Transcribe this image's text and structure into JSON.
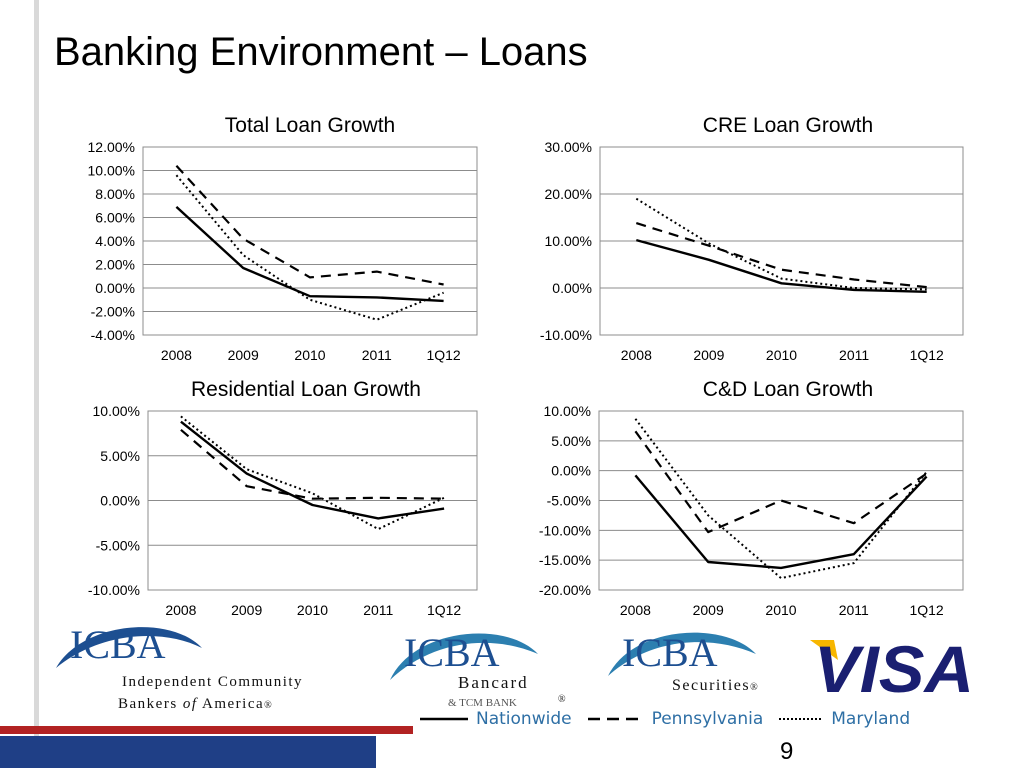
{
  "slide": {
    "title": "Banking Environment – Loans",
    "page_number": "9"
  },
  "chart_data": [
    {
      "type": "line",
      "title": "Total Loan Growth",
      "categories": [
        "2008",
        "2009",
        "2010",
        "2011",
        "1Q12"
      ],
      "ylim": [
        -4,
        12
      ],
      "yticks": [
        "12.00%",
        "10.00%",
        "8.00%",
        "6.00%",
        "4.00%",
        "2.00%",
        "0.00%",
        "-2.00%",
        "-4.00%"
      ],
      "ytick_values": [
        12,
        10,
        8,
        6,
        4,
        2,
        0,
        -2,
        -4
      ],
      "grid": true,
      "series": [
        {
          "name": "Nationwide",
          "values": [
            6.9,
            1.7,
            -0.7,
            -0.8,
            -1.1
          ]
        },
        {
          "name": "Pennsylvania",
          "values": [
            10.4,
            4.2,
            0.9,
            1.4,
            0.3
          ]
        },
        {
          "name": "Maryland",
          "values": [
            9.6,
            2.8,
            -1.0,
            -2.7,
            -0.4
          ]
        }
      ]
    },
    {
      "type": "line",
      "title": "CRE Loan Growth",
      "categories": [
        "2008",
        "2009",
        "2010",
        "2011",
        "1Q12"
      ],
      "ylim": [
        -10,
        30
      ],
      "yticks": [
        "30.00%",
        "20.00%",
        "10.00%",
        "0.00%",
        "-10.00%"
      ],
      "ytick_values": [
        30,
        20,
        10,
        0,
        -10
      ],
      "grid": true,
      "series": [
        {
          "name": "Nationwide",
          "values": [
            10.2,
            6.0,
            1.0,
            -0.4,
            -0.8
          ]
        },
        {
          "name": "Pennsylvania",
          "values": [
            13.8,
            9.0,
            3.9,
            1.8,
            0.2
          ]
        },
        {
          "name": "Maryland",
          "values": [
            19.0,
            9.5,
            2.0,
            0.0,
            -0.3
          ]
        }
      ]
    },
    {
      "type": "line",
      "title": "Residential Loan Growth",
      "categories": [
        "2008",
        "2009",
        "2010",
        "2011",
        "1Q12"
      ],
      "ylim": [
        -10,
        10
      ],
      "yticks": [
        "10.00%",
        "5.00%",
        "0.00%",
        "-5.00%",
        "-10.00%"
      ],
      "ytick_values": [
        10,
        5,
        0,
        -5,
        -10
      ],
      "grid": true,
      "series": [
        {
          "name": "Nationwide",
          "values": [
            8.8,
            3.0,
            -0.5,
            -2.0,
            -0.9
          ]
        },
        {
          "name": "Pennsylvania",
          "values": [
            7.9,
            1.6,
            0.2,
            0.3,
            0.2
          ]
        },
        {
          "name": "Maryland",
          "values": [
            9.4,
            3.5,
            0.8,
            -3.2,
            0.3
          ]
        }
      ]
    },
    {
      "type": "line",
      "title": "C&D Loan Growth",
      "categories": [
        "2008",
        "2009",
        "2010",
        "2011",
        "1Q12"
      ],
      "ylim": [
        -20,
        10
      ],
      "yticks": [
        "10.00%",
        "5.00%",
        "0.00%",
        "-5.00%",
        "-10.00%",
        "-15.00%",
        "-20.00%"
      ],
      "ytick_values": [
        10,
        5,
        0,
        -5,
        -10,
        -15,
        -20
      ],
      "grid": true,
      "series": [
        {
          "name": "Nationwide",
          "values": [
            -0.8,
            -15.3,
            -16.3,
            -14.0,
            -1.0
          ]
        },
        {
          "name": "Pennsylvania",
          "values": [
            6.6,
            -10.3,
            -5.0,
            -8.8,
            -0.5
          ]
        },
        {
          "name": "Maryland",
          "values": [
            8.7,
            -7.5,
            -18.0,
            -15.5,
            -0.2
          ]
        }
      ]
    }
  ],
  "legend": {
    "items": [
      {
        "label": "Nationwide",
        "dash": "solid"
      },
      {
        "label": "Pennsylvania",
        "dash": "dashed"
      },
      {
        "label": "Maryland",
        "dash": "dotted"
      }
    ]
  },
  "logos": {
    "icba": {
      "mark": "ICBA",
      "line1": "Independent Community",
      "line2_pre": "Bankers",
      "line2_of": "of",
      "line2_post": "America",
      "reg": "®"
    },
    "bancard": {
      "mark": "ICBA",
      "sub": "Bancard",
      "sub2": "& TCM BANK",
      "reg": "®"
    },
    "securities": {
      "mark": "ICBA",
      "sub": "Securities",
      "reg": "®"
    },
    "visa": {
      "mark": "VISA"
    }
  },
  "colors": {
    "series_line": "#000000",
    "grid": "#8c8c8c",
    "icba_blue": "#1d4f91",
    "icba_teal": "#2c7fb0",
    "visa_blue": "#1a1f71",
    "visa_gold": "#f7b600",
    "legend_text": "#2e6fa5",
    "bar_blue": "#1f3f86",
    "bar_red": "#b22222"
  }
}
